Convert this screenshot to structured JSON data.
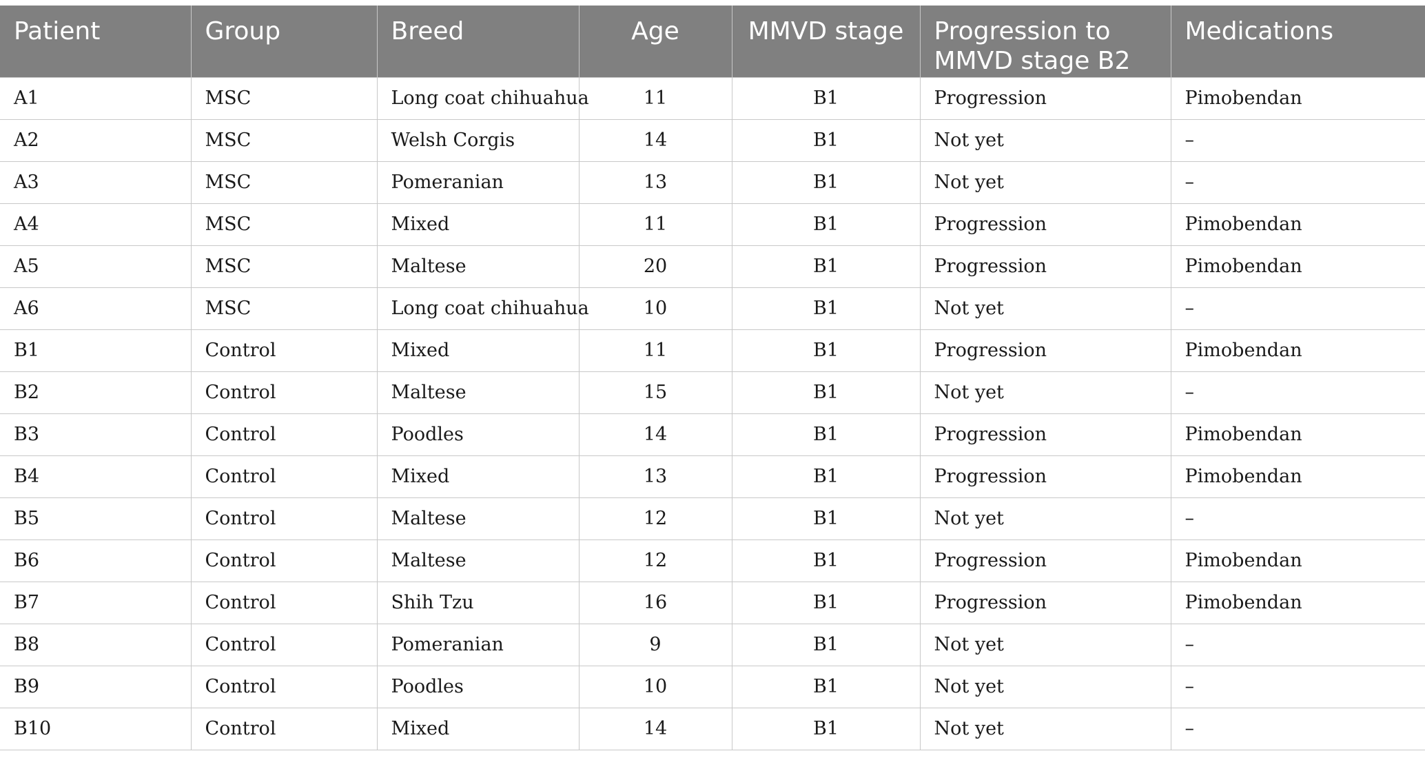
{
  "table": {
    "headers": {
      "patient": "Patient",
      "group": "Group",
      "breed": "Breed",
      "age": "Age",
      "stage": "MMVD stage",
      "progression": "Progression to MMVD stage B2",
      "medications": "Medications"
    },
    "rows": [
      {
        "patient": "A1",
        "group": "MSC",
        "breed": "Long coat chihuahua",
        "age": "11",
        "stage": "B1",
        "progression": "Progression",
        "medications": "Pimobendan"
      },
      {
        "patient": "A2",
        "group": "MSC",
        "breed": "Welsh Corgis",
        "age": "14",
        "stage": "B1",
        "progression": "Not yet",
        "medications": "–"
      },
      {
        "patient": "A3",
        "group": "MSC",
        "breed": "Pomeranian",
        "age": "13",
        "stage": "B1",
        "progression": "Not yet",
        "medications": "–"
      },
      {
        "patient": "A4",
        "group": "MSC",
        "breed": "Mixed",
        "age": "11",
        "stage": "B1",
        "progression": "Progression",
        "medications": "Pimobendan"
      },
      {
        "patient": "A5",
        "group": "MSC",
        "breed": "Maltese",
        "age": "20",
        "stage": "B1",
        "progression": "Progression",
        "medications": "Pimobendan"
      },
      {
        "patient": "A6",
        "group": "MSC",
        "breed": "Long coat chihuahua",
        "age": "10",
        "stage": "B1",
        "progression": "Not yet",
        "medications": "–"
      },
      {
        "patient": "B1",
        "group": "Control",
        "breed": "Mixed",
        "age": "11",
        "stage": "B1",
        "progression": "Progression",
        "medications": "Pimobendan"
      },
      {
        "patient": "B2",
        "group": "Control",
        "breed": "Maltese",
        "age": "15",
        "stage": "B1",
        "progression": "Not yet",
        "medications": "–"
      },
      {
        "patient": "B3",
        "group": "Control",
        "breed": "Poodles",
        "age": "14",
        "stage": "B1",
        "progression": "Progression",
        "medications": "Pimobendan"
      },
      {
        "patient": "B4",
        "group": "Control",
        "breed": "Mixed",
        "age": "13",
        "stage": "B1",
        "progression": "Progression",
        "medications": "Pimobendan"
      },
      {
        "patient": "B5",
        "group": "Control",
        "breed": "Maltese",
        "age": "12",
        "stage": "B1",
        "progression": "Not yet",
        "medications": "–"
      },
      {
        "patient": "B6",
        "group": "Control",
        "breed": "Maltese",
        "age": "12",
        "stage": "B1",
        "progression": "Progression",
        "medications": "Pimobendan"
      },
      {
        "patient": "B7",
        "group": "Control",
        "breed": "Shih Tzu",
        "age": "16",
        "stage": "B1",
        "progression": "Progression",
        "medications": "Pimobendan"
      },
      {
        "patient": "B8",
        "group": "Control",
        "breed": "Pomeranian",
        "age": "9",
        "stage": "B1",
        "progression": "Not yet",
        "medications": "–"
      },
      {
        "patient": "B9",
        "group": "Control",
        "breed": "Poodles",
        "age": "10",
        "stage": "B1",
        "progression": "Not yet",
        "medications": "–"
      },
      {
        "patient": "B10",
        "group": "Control",
        "breed": "Mixed",
        "age": "14",
        "stage": "B1",
        "progression": "Not yet",
        "medications": "–"
      }
    ]
  }
}
